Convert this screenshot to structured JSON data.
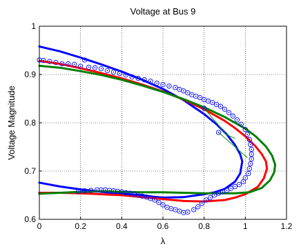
{
  "chart_data": {
    "type": "line",
    "title": "Voltage at Bus 9",
    "xlabel": "λ",
    "ylabel": "Voltage Magnitude",
    "xlim": [
      0,
      1.2
    ],
    "ylim": [
      0.6,
      1.0
    ],
    "grid": true,
    "legend": "none",
    "x_ticks": [
      0,
      0.2,
      0.4,
      0.6,
      0.8,
      1,
      1.2
    ],
    "x_tick_labels": [
      "0",
      "0.2",
      "0.4",
      "0.6",
      "0.8",
      "1",
      "1.2"
    ],
    "y_ticks": [
      0.6,
      0.7,
      0.8,
      0.9,
      1.0
    ],
    "y_tick_labels": [
      "0.6",
      "0.7",
      "0.8",
      "0.9",
      "1"
    ],
    "series": [
      {
        "color": "#0000ff",
        "style": "solid",
        "points": [
          [
            0,
            0.958
          ],
          [
            0.1,
            0.948
          ],
          [
            0.2,
            0.935
          ],
          [
            0.3,
            0.921
          ],
          [
            0.4,
            0.906
          ],
          [
            0.5,
            0.889
          ],
          [
            0.6,
            0.87
          ],
          [
            0.7,
            0.847
          ],
          [
            0.8,
            0.818
          ],
          [
            0.86,
            0.797
          ],
          [
            0.91,
            0.776
          ],
          [
            0.95,
            0.754
          ],
          [
            0.975,
            0.735
          ],
          [
            0.985,
            0.72
          ],
          [
            0.975,
            0.695
          ],
          [
            0.95,
            0.678
          ],
          [
            0.9,
            0.663
          ],
          [
            0.85,
            0.656
          ],
          [
            0.8,
            0.652
          ],
          [
            0.7,
            0.646
          ],
          [
            0.6,
            0.645
          ],
          [
            0.55,
            0.647
          ],
          [
            0.5,
            0.65
          ],
          [
            0.4,
            0.653
          ],
          [
            0.3,
            0.657
          ],
          [
            0.2,
            0.662
          ],
          [
            0.1,
            0.668
          ],
          [
            0,
            0.676
          ]
        ]
      },
      {
        "color": "#ff0000",
        "style": "solid",
        "points": [
          [
            0,
            0.928
          ],
          [
            0.1,
            0.922
          ],
          [
            0.2,
            0.913
          ],
          [
            0.3,
            0.903
          ],
          [
            0.4,
            0.892
          ],
          [
            0.5,
            0.879
          ],
          [
            0.6,
            0.865
          ],
          [
            0.7,
            0.848
          ],
          [
            0.8,
            0.828
          ],
          [
            0.9,
            0.804
          ],
          [
            0.95,
            0.789
          ],
          [
            1.0,
            0.772
          ],
          [
            1.05,
            0.751
          ],
          [
            1.08,
            0.735
          ],
          [
            1.1,
            0.72
          ],
          [
            1.105,
            0.705
          ],
          [
            1.09,
            0.685
          ],
          [
            1.06,
            0.667
          ],
          [
            1.0,
            0.652
          ],
          [
            0.95,
            0.645
          ],
          [
            0.9,
            0.64
          ],
          [
            0.8,
            0.637
          ],
          [
            0.7,
            0.638
          ],
          [
            0.6,
            0.642
          ],
          [
            0.5,
            0.646
          ],
          [
            0.4,
            0.65
          ],
          [
            0.3,
            0.652
          ],
          [
            0.2,
            0.654
          ],
          [
            0.1,
            0.655
          ],
          [
            0,
            0.655
          ]
        ]
      },
      {
        "color": "#008000",
        "style": "solid",
        "points": [
          [
            0,
            0.918
          ],
          [
            0.1,
            0.914
          ],
          [
            0.2,
            0.907
          ],
          [
            0.3,
            0.899
          ],
          [
            0.4,
            0.889
          ],
          [
            0.5,
            0.877
          ],
          [
            0.6,
            0.864
          ],
          [
            0.7,
            0.849
          ],
          [
            0.8,
            0.832
          ],
          [
            0.9,
            0.812
          ],
          [
            1.0,
            0.788
          ],
          [
            1.05,
            0.772
          ],
          [
            1.1,
            0.751
          ],
          [
            1.13,
            0.732
          ],
          [
            1.145,
            0.713
          ],
          [
            1.14,
            0.697
          ],
          [
            1.12,
            0.681
          ],
          [
            1.08,
            0.665
          ],
          [
            1.02,
            0.656
          ],
          [
            0.95,
            0.654
          ],
          [
            0.9,
            0.654
          ],
          [
            0.8,
            0.654
          ],
          [
            0.7,
            0.655
          ],
          [
            0.6,
            0.656
          ],
          [
            0.5,
            0.656
          ],
          [
            0.4,
            0.657
          ],
          [
            0.3,
            0.658
          ],
          [
            0.2,
            0.657
          ],
          [
            0.1,
            0.655
          ],
          [
            0,
            0.653
          ]
        ]
      },
      {
        "color": "#00a000",
        "style": "solid-thin",
        "points": [
          [
            0.8,
            0.83
          ],
          [
            0.91,
            0.775
          ],
          [
            0.95,
            0.768
          ]
        ]
      },
      {
        "color": "#00a000",
        "style": "solid-thin",
        "points": [
          [
            0.87,
            0.78
          ],
          [
            0.99,
            0.735
          ],
          [
            1.01,
            0.728
          ]
        ]
      }
    ],
    "markers": {
      "color": "#0000ff",
      "shape": "circle-dot",
      "points": [
        [
          0.0,
          0.93
        ],
        [
          0.02,
          0.929
        ],
        [
          0.05,
          0.927
        ],
        [
          0.08,
          0.925
        ],
        [
          0.11,
          0.922
        ],
        [
          0.14,
          0.922
        ],
        [
          0.17,
          0.921
        ],
        [
          0.2,
          0.917
        ],
        [
          0.22,
          0.93
        ],
        [
          0.24,
          0.915
        ],
        [
          0.27,
          0.914
        ],
        [
          0.3,
          0.912
        ],
        [
          0.33,
          0.908
        ],
        [
          0.36,
          0.905
        ],
        [
          0.39,
          0.902
        ],
        [
          0.42,
          0.899
        ],
        [
          0.45,
          0.895
        ],
        [
          0.48,
          0.892
        ],
        [
          0.51,
          0.889
        ],
        [
          0.54,
          0.886
        ],
        [
          0.57,
          0.882
        ],
        [
          0.6,
          0.879
        ],
        [
          0.63,
          0.876
        ],
        [
          0.66,
          0.873
        ],
        [
          0.68,
          0.869
        ],
        [
          0.7,
          0.866
        ],
        [
          0.72,
          0.862
        ],
        [
          0.74,
          0.858
        ],
        [
          0.76,
          0.855
        ],
        [
          0.78,
          0.852
        ],
        [
          0.8,
          0.848
        ],
        [
          0.82,
          0.845
        ],
        [
          0.84,
          0.842
        ],
        [
          0.86,
          0.838
        ],
        [
          0.88,
          0.834
        ],
        [
          0.9,
          0.828
        ],
        [
          0.92,
          0.821
        ],
        [
          0.94,
          0.814
        ],
        [
          0.96,
          0.806
        ],
        [
          0.98,
          0.797
        ],
        [
          1.0,
          0.786
        ],
        [
          1.01,
          0.776
        ],
        [
          1.02,
          0.765
        ],
        [
          1.025,
          0.755
        ],
        [
          1.03,
          0.745
        ],
        [
          1.03,
          0.735
        ],
        [
          1.03,
          0.725
        ],
        [
          1.025,
          0.715
        ],
        [
          1.02,
          0.705
        ],
        [
          1.015,
          0.695
        ],
        [
          1.0,
          0.686
        ],
        [
          0.99,
          0.678
        ],
        [
          0.97,
          0.672
        ],
        [
          0.95,
          0.668
        ],
        [
          0.93,
          0.664
        ],
        [
          0.91,
          0.66
        ],
        [
          0.89,
          0.657
        ],
        [
          0.87,
          0.654
        ],
        [
          0.85,
          0.65
        ],
        [
          0.83,
          0.645
        ],
        [
          0.81,
          0.64
        ],
        [
          0.79,
          0.633
        ],
        [
          0.77,
          0.626
        ],
        [
          0.75,
          0.62
        ],
        [
          0.72,
          0.615
        ],
        [
          0.7,
          0.614
        ],
        [
          0.68,
          0.617
        ],
        [
          0.66,
          0.62
        ],
        [
          0.64,
          0.622
        ],
        [
          0.62,
          0.625
        ],
        [
          0.6,
          0.63
        ],
        [
          0.58,
          0.635
        ],
        [
          0.56,
          0.64
        ],
        [
          0.54,
          0.643
        ],
        [
          0.52,
          0.646
        ],
        [
          0.5,
          0.648
        ],
        [
          0.48,
          0.65
        ],
        [
          0.46,
          0.652
        ],
        [
          0.44,
          0.654
        ],
        [
          0.42,
          0.655
        ],
        [
          0.4,
          0.657
        ],
        [
          0.38,
          0.658
        ],
        [
          0.36,
          0.659
        ],
        [
          0.34,
          0.66
        ],
        [
          0.32,
          0.661
        ],
        [
          0.3,
          0.661
        ],
        [
          0.28,
          0.661
        ],
        [
          0.25,
          0.66
        ],
        [
          0.22,
          0.659
        ],
        [
          0.19,
          0.658
        ],
        [
          0.8,
          0.83
        ],
        [
          0.87,
          0.78
        ]
      ]
    }
  }
}
